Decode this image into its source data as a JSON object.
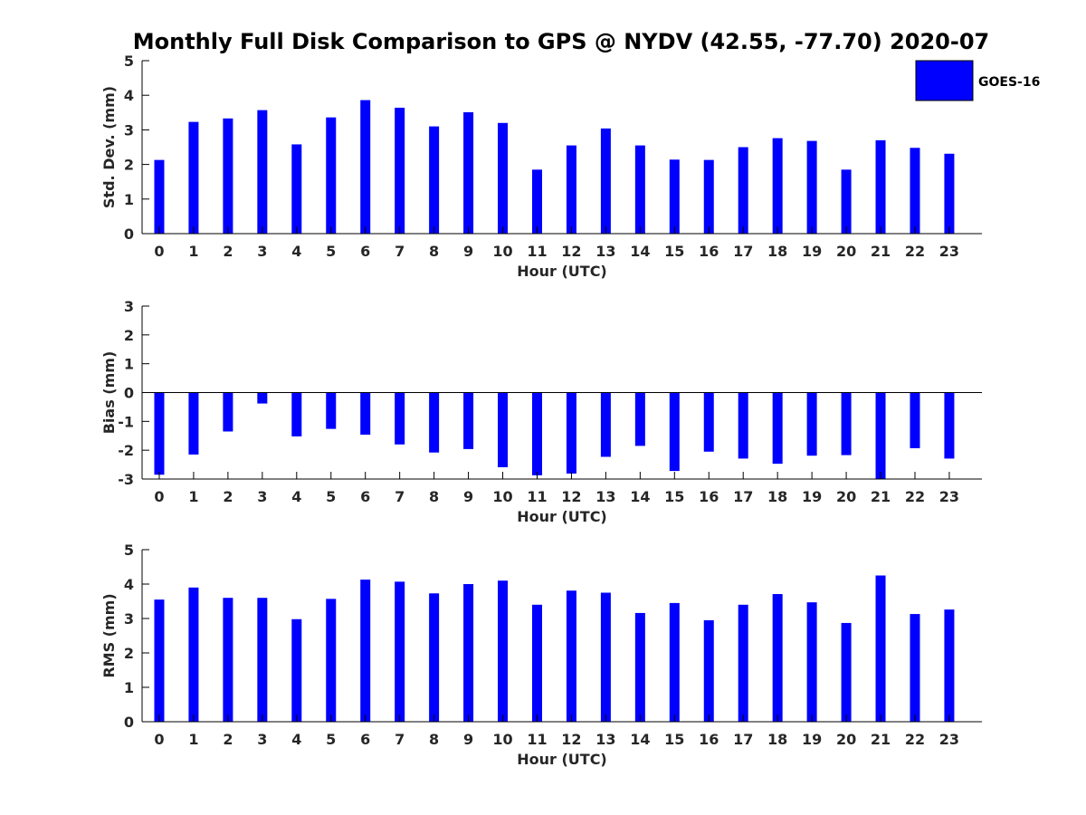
{
  "figure": {
    "title": "Monthly Full Disk Comparison to GPS @ NYDV (42.55, -77.70) 2020-07",
    "legend": {
      "label": "GOES-16",
      "color": "#0000ff",
      "placement": "top-right"
    }
  },
  "chart_data": [
    {
      "type": "bar",
      "xlabel": "Hour (UTC)",
      "ylabel": "Std. Dev. (mm)",
      "ylim": [
        0,
        5
      ],
      "yticks": [
        "0",
        "1",
        "2",
        "3",
        "4",
        "5"
      ],
      "categories": [
        "0",
        "1",
        "2",
        "3",
        "4",
        "5",
        "6",
        "7",
        "8",
        "9",
        "10",
        "11",
        "12",
        "13",
        "14",
        "15",
        "16",
        "17",
        "18",
        "19",
        "20",
        "21",
        "22",
        "23"
      ],
      "series": [
        {
          "name": "GOES-16",
          "color": "#0000ff",
          "values": [
            2.13,
            3.23,
            3.33,
            3.57,
            2.58,
            3.36,
            3.86,
            3.64,
            3.1,
            3.51,
            3.2,
            1.85,
            2.55,
            3.04,
            2.55,
            2.14,
            2.13,
            2.5,
            2.76,
            2.68,
            1.85,
            2.7,
            2.48,
            2.31
          ]
        }
      ],
      "grid": false
    },
    {
      "type": "bar",
      "xlabel": "Hour (UTC)",
      "ylabel": "Bias (mm)",
      "ylim": [
        -3,
        3
      ],
      "yticks": [
        "-3",
        "-2",
        "-1",
        "0",
        "1",
        "2",
        "3"
      ],
      "categories": [
        "0",
        "1",
        "2",
        "3",
        "4",
        "5",
        "6",
        "7",
        "8",
        "9",
        "10",
        "11",
        "12",
        "13",
        "14",
        "15",
        "16",
        "17",
        "18",
        "19",
        "20",
        "21",
        "22",
        "23"
      ],
      "series": [
        {
          "name": "GOES-16",
          "color": "#0000ff",
          "values": [
            -2.85,
            -2.15,
            -1.35,
            -0.38,
            -1.52,
            -1.26,
            -1.46,
            -1.8,
            -2.08,
            -1.96,
            -2.59,
            -2.87,
            -2.81,
            -2.23,
            -1.85,
            -2.72,
            -2.05,
            -2.29,
            -2.47,
            -2.19,
            -2.17,
            -3.0,
            -1.93,
            -2.29
          ]
        }
      ],
      "grid": false
    },
    {
      "type": "bar",
      "xlabel": "Hour (UTC)",
      "ylabel": "RMS (mm)",
      "ylim": [
        0,
        5
      ],
      "yticks": [
        "0",
        "1",
        "2",
        "3",
        "4",
        "5"
      ],
      "categories": [
        "0",
        "1",
        "2",
        "3",
        "4",
        "5",
        "6",
        "7",
        "8",
        "9",
        "10",
        "11",
        "12",
        "13",
        "14",
        "15",
        "16",
        "17",
        "18",
        "19",
        "20",
        "21",
        "22",
        "23"
      ],
      "series": [
        {
          "name": "GOES-16",
          "color": "#0000ff",
          "values": [
            3.55,
            3.9,
            3.6,
            3.6,
            2.98,
            3.57,
            4.13,
            4.07,
            3.73,
            4.0,
            4.1,
            3.4,
            3.81,
            3.75,
            3.16,
            3.45,
            2.95,
            3.4,
            3.71,
            3.47,
            2.87,
            4.25,
            3.13,
            3.26
          ]
        }
      ],
      "grid": false
    }
  ]
}
